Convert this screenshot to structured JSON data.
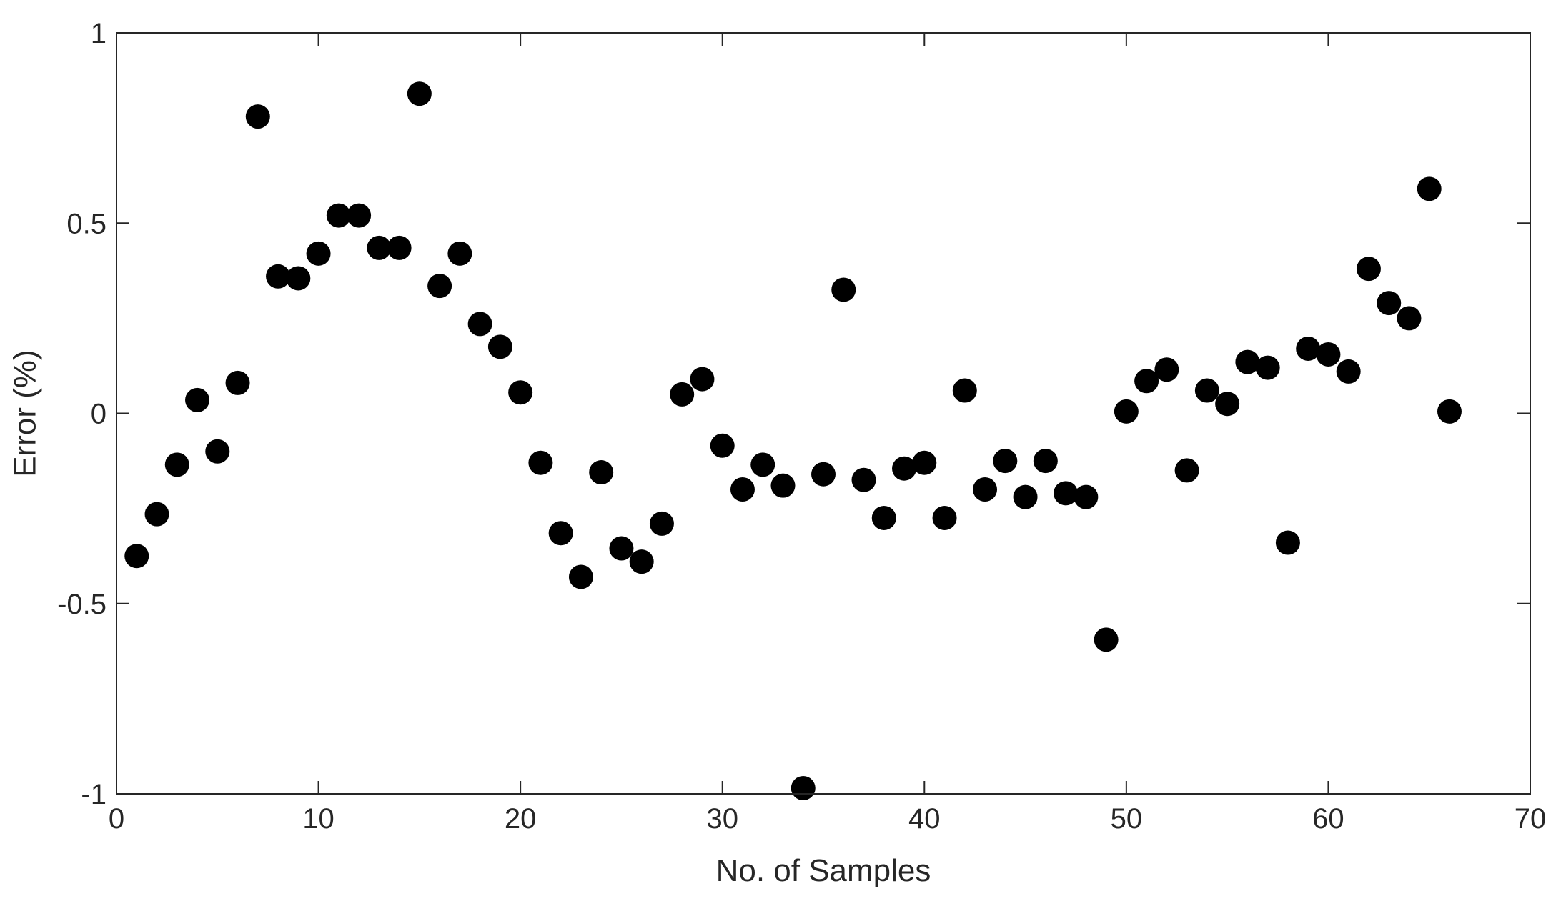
{
  "chart_data": {
    "type": "scatter",
    "title": "",
    "xlabel": "No. of Samples",
    "ylabel": "Error (%)",
    "xlim": [
      0,
      70
    ],
    "ylim": [
      -1,
      1
    ],
    "xticks": [
      0,
      10,
      20,
      30,
      40,
      50,
      60,
      70
    ],
    "xtick_labels": [
      "0",
      "10",
      "20",
      "30",
      "40",
      "50",
      "60",
      "70"
    ],
    "yticks": [
      1,
      0.5,
      0,
      -0.5,
      -1
    ],
    "ytick_labels": [
      "1",
      "0.5",
      "0",
      "-0.5",
      "-1"
    ],
    "grid": false,
    "box": true,
    "marker_color": "#000000",
    "series": [
      {
        "x": [
          1,
          2,
          3,
          4,
          5,
          6,
          7,
          8,
          9,
          10,
          11,
          12,
          13,
          14,
          15,
          16,
          17,
          18,
          19,
          20,
          21,
          22,
          23,
          24,
          25,
          26,
          27,
          28,
          29,
          30,
          31,
          32,
          33,
          34,
          35,
          36,
          37,
          38,
          39,
          40,
          41,
          42,
          43,
          44,
          45,
          46,
          47,
          48,
          49,
          50,
          51,
          52,
          53,
          54,
          55,
          56,
          57,
          58,
          59,
          60,
          61,
          62,
          63,
          64,
          65,
          66
        ],
        "y": [
          -0.375,
          -0.265,
          -0.135,
          0.035,
          -0.1,
          0.08,
          0.78,
          0.36,
          0.355,
          0.42,
          0.52,
          0.52,
          0.435,
          0.435,
          0.84,
          0.335,
          0.42,
          0.235,
          0.175,
          0.055,
          -0.13,
          -0.315,
          -0.43,
          -0.155,
          -0.355,
          -0.39,
          -0.29,
          0.05,
          0.09,
          -0.085,
          -0.2,
          -0.135,
          -0.19,
          -0.985,
          -0.16,
          0.325,
          -0.175,
          -0.275,
          -0.145,
          -0.13,
          -0.275,
          0.06,
          -0.2,
          -0.125,
          -0.22,
          -0.125,
          -0.21,
          -0.22,
          -0.595,
          0.005,
          0.085,
          0.115,
          -0.15,
          0.06,
          0.025,
          0.135,
          0.12,
          -0.34,
          0.17,
          0.155,
          0.11,
          0.38,
          0.29,
          0.25,
          0.59,
          0.005
        ]
      }
    ]
  }
}
